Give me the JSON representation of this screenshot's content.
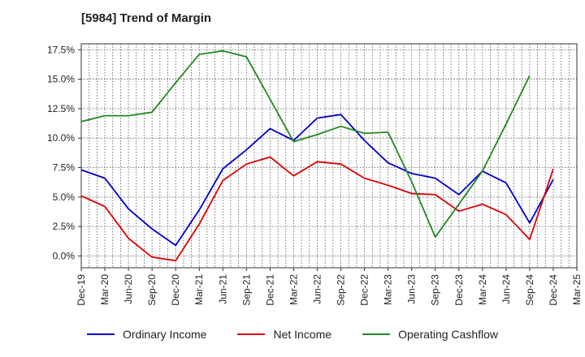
{
  "chart_data": {
    "type": "line",
    "title": "[5984]  Trend of Margin",
    "xlabel": "",
    "ylabel": "",
    "x": [
      "Dec-19",
      "Mar-20",
      "Jun-20",
      "Sep-20",
      "Dec-20",
      "Mar-21",
      "Jun-21",
      "Sep-21",
      "Dec-21",
      "Mar-22",
      "Jun-22",
      "Sep-22",
      "Dec-22",
      "Mar-23",
      "Jun-23",
      "Sep-23",
      "Dec-23",
      "Mar-24",
      "Jun-24",
      "Sep-24",
      "Dec-24",
      "Mar-25"
    ],
    "ylim": [
      -1.0,
      18.0
    ],
    "yticks": [
      0.0,
      2.5,
      5.0,
      7.5,
      10.0,
      12.5,
      15.0,
      17.5
    ],
    "ytick_labels": [
      "0.0%",
      "2.5%",
      "5.0%",
      "7.5%",
      "10.0%",
      "12.5%",
      "15.0%",
      "17.5%"
    ],
    "grid": true,
    "legend_position": "bottom",
    "series": [
      {
        "name": "Ordinary Income",
        "color": "#0000cc",
        "values": [
          7.3,
          6.6,
          4.0,
          2.3,
          0.9,
          3.9,
          7.4,
          9.0,
          10.8,
          9.8,
          11.7,
          12.0,
          9.8,
          7.9,
          7.0,
          6.6,
          5.2,
          7.2,
          6.2,
          2.8,
          6.5,
          null
        ]
      },
      {
        "name": "Net Income",
        "color": "#dd0000",
        "values": [
          5.1,
          4.2,
          1.5,
          -0.1,
          -0.4,
          2.7,
          6.4,
          7.8,
          8.4,
          6.8,
          8.0,
          7.8,
          6.6,
          6.0,
          5.3,
          5.2,
          3.8,
          4.4,
          3.5,
          1.4,
          7.4,
          null
        ]
      },
      {
        "name": "Operating Cashflow",
        "color": "#228822",
        "values": [
          11.4,
          11.9,
          11.9,
          12.2,
          14.7,
          17.1,
          17.4,
          16.9,
          13.3,
          9.7,
          10.3,
          11.0,
          10.4,
          10.5,
          6.3,
          1.6,
          4.4,
          7.2,
          11.2,
          15.3,
          null,
          null
        ]
      }
    ]
  }
}
